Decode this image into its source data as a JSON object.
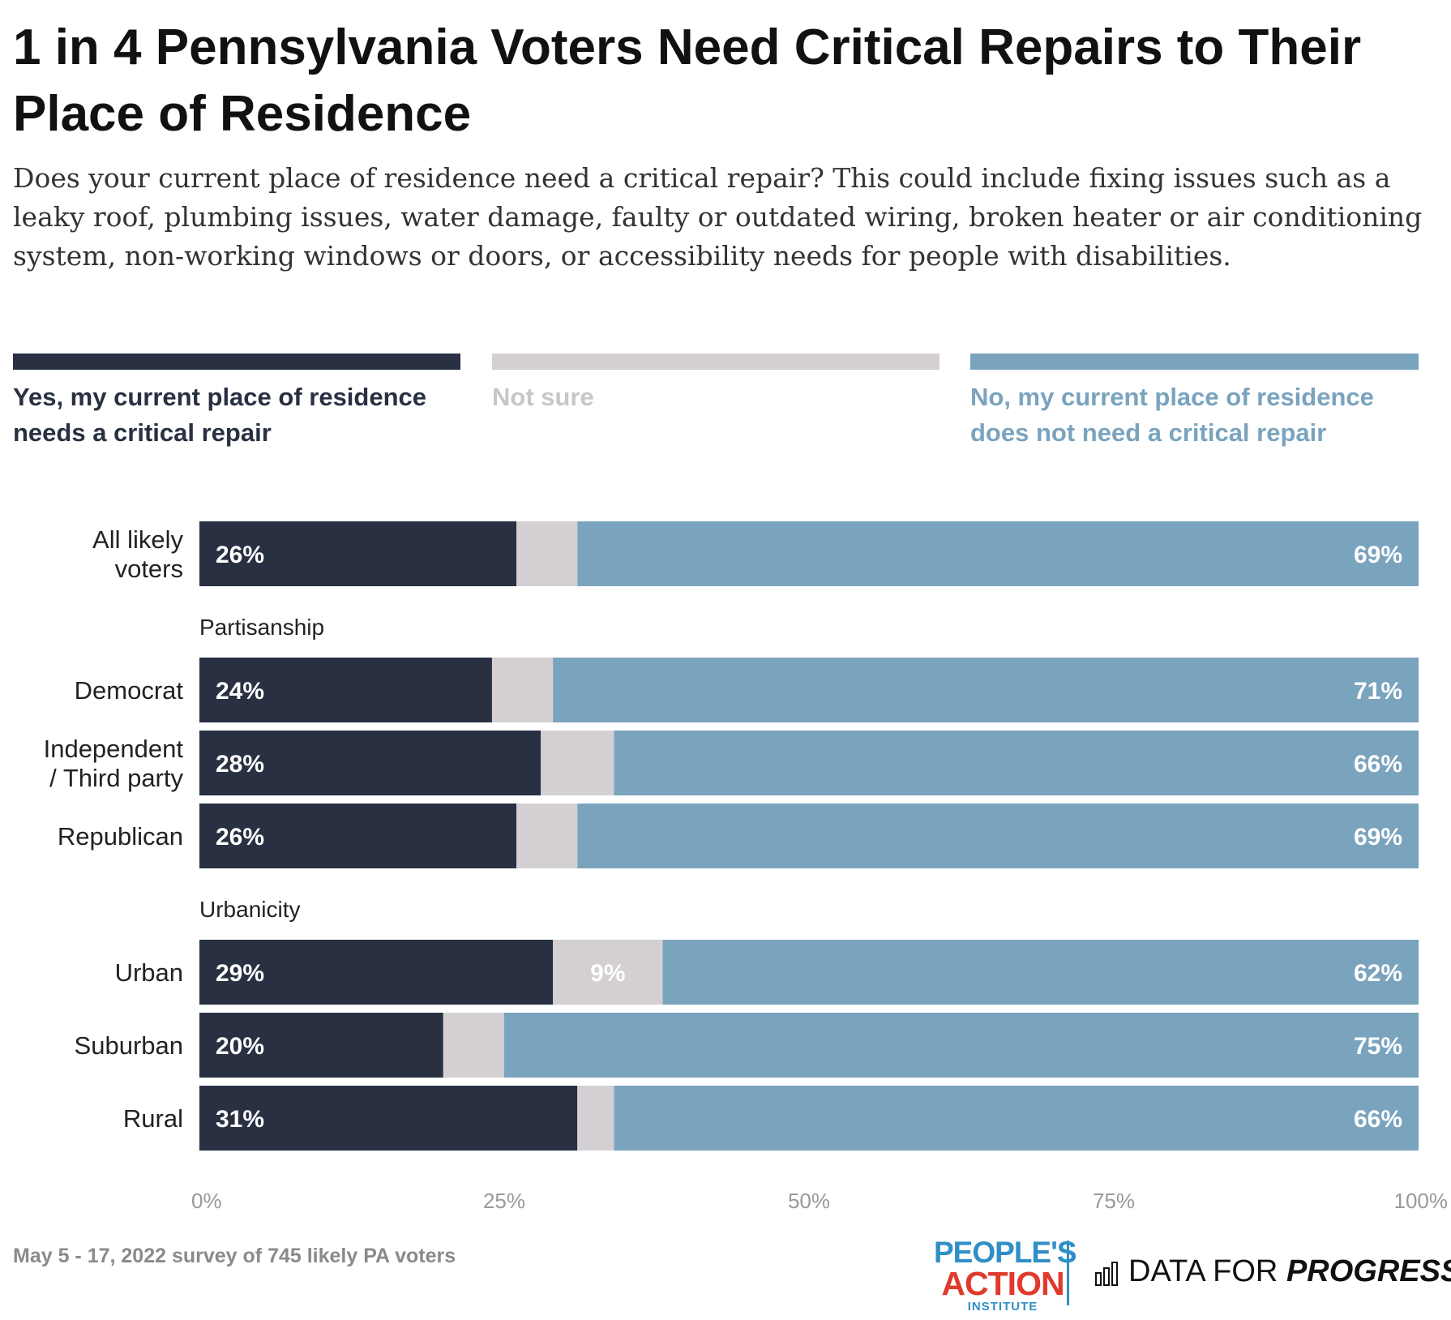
{
  "header": {
    "title": "1 in 4 Pennsylvania Voters Need Critical Repairs to Their Place of Residence",
    "subtitle": "Does your current place of residence need a critical repair? This could include fixing issues such as a leaky roof, plumbing issues, water damage, faulty or outdated wiring, broken heater or air conditioning system, non-working windows or doors, or accessibility needs for people with disabilities."
  },
  "legend": {
    "items": [
      {
        "label": "Yes, my current place of residence needs a critical repair",
        "color": "#283042"
      },
      {
        "label": "Not sure",
        "color": "#d3cfd3"
      },
      {
        "label": "No, my current place of residence does not need a critical repair",
        "color": "#7aa3be"
      }
    ]
  },
  "chart_data": {
    "type": "bar",
    "orientation": "horizontal",
    "stacked": true,
    "xlim": [
      0,
      100
    ],
    "x_ticks": [
      "0%",
      "25%",
      "50%",
      "75%",
      "100%"
    ],
    "series_colors": [
      "#283042",
      "#d3cfd3",
      "#7aa3be"
    ],
    "groups": [
      {
        "label": "",
        "rows": [
          {
            "category": "All likely voters",
            "values": [
              26,
              5,
              69
            ],
            "labels": [
              "26%",
              "",
              "69%"
            ]
          }
        ]
      },
      {
        "label": "Partisanship",
        "rows": [
          {
            "category": "Democrat",
            "values": [
              24,
              5,
              71
            ],
            "labels": [
              "24%",
              "",
              "71%"
            ]
          },
          {
            "category": "Independent / Third party",
            "values": [
              28,
              6,
              66
            ],
            "labels": [
              "28%",
              "",
              "66%"
            ]
          },
          {
            "category": "Republican",
            "values": [
              26,
              5,
              69
            ],
            "labels": [
              "26%",
              "",
              "69%"
            ]
          }
        ]
      },
      {
        "label": "Urbanicity",
        "rows": [
          {
            "category": "Urban",
            "values": [
              29,
              9,
              62
            ],
            "labels": [
              "29%",
              "9%",
              "62%"
            ]
          },
          {
            "category": "Suburban",
            "values": [
              20,
              5,
              75
            ],
            "labels": [
              "20%",
              "",
              "75%"
            ]
          },
          {
            "category": "Rural",
            "values": [
              31,
              3,
              66
            ],
            "labels": [
              "31%",
              "",
              "66%"
            ]
          }
        ]
      }
    ]
  },
  "footer": {
    "note": "May 5 - 17, 2022 survey of 745 likely PA voters",
    "logo_pa": {
      "line1": "PEOPLE'S",
      "line2": "ACTION",
      "line3": "INSTITUTE"
    },
    "logo_dfp": {
      "part1": "DATA FOR ",
      "part2": "PROGRESS"
    }
  }
}
